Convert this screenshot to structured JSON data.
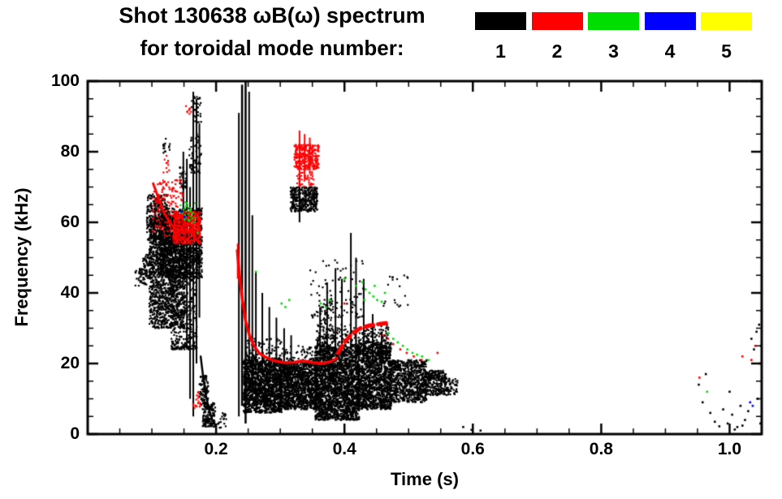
{
  "title": {
    "line1": "Shot 130638 ωB(ω) spectrum",
    "line2": "for toroidal mode number:"
  },
  "legend": {
    "entries": [
      {
        "label": "1",
        "color": "#000000"
      },
      {
        "label": "2",
        "color": "#ff0000"
      },
      {
        "label": "3",
        "color": "#00dd00"
      },
      {
        "label": "4",
        "color": "#0000ff"
      },
      {
        "label": "5",
        "color": "#ffff00"
      }
    ]
  },
  "axes": {
    "x": {
      "label": "Time (s)",
      "min": 0,
      "max": 1.05,
      "ticks": [
        0.2,
        0.4,
        0.6,
        0.8,
        1.0
      ],
      "tick_labels": [
        "0.2",
        "0.4",
        "0.6",
        "0.8",
        "1.0"
      ],
      "minor_step": 0.05
    },
    "y": {
      "label": "Frequency (kHz)",
      "min": 0,
      "max": 100,
      "ticks": [
        0,
        20,
        40,
        60,
        80,
        100
      ],
      "tick_labels": [
        "0",
        "20",
        "40",
        "60",
        "80",
        "100"
      ],
      "minor_step": 5
    }
  },
  "chart_data": {
    "type": "scatter",
    "title": "Shot 130638 ωB(ω) spectrum for toroidal mode number",
    "xlabel": "Time (s)",
    "ylabel": "Frequency (kHz)",
    "xlim": [
      0,
      1.05
    ],
    "ylim": [
      0,
      100
    ],
    "grid": false,
    "legend_position": "top-right",
    "series": [
      {
        "name": "1",
        "color": "#000000",
        "clusters": [
          [
            0.074,
            0.092,
            42,
            47,
            45,
            0
          ],
          [
            0.086,
            0.101,
            44,
            51,
            70,
            0
          ],
          [
            0.092,
            0.124,
            55,
            68,
            280,
            0
          ],
          [
            0.096,
            0.152,
            30,
            62,
            1600,
            0
          ],
          [
            0.113,
            0.178,
            44,
            64,
            1200,
            0
          ],
          [
            0.13,
            0.17,
            24,
            45,
            300,
            1
          ],
          [
            0.117,
            0.129,
            79,
            84,
            16,
            0
          ],
          [
            0.158,
            0.177,
            74,
            85,
            60,
            0
          ],
          [
            0.161,
            0.177,
            88,
            96,
            30,
            0
          ],
          [
            0.143,
            0.154,
            69,
            76,
            30,
            0
          ],
          [
            0.179,
            0.199,
            2,
            9,
            140,
            0
          ],
          [
            0.174,
            0.188,
            8,
            17,
            80,
            0
          ],
          [
            0.202,
            0.216,
            1.5,
            6,
            20,
            0
          ],
          [
            0.243,
            0.302,
            6,
            21,
            1500,
            0
          ],
          [
            0.245,
            0.302,
            21,
            27,
            100,
            1
          ],
          [
            0.3,
            0.358,
            7,
            20,
            1200,
            0
          ],
          [
            0.302,
            0.356,
            20,
            25,
            80,
            1
          ],
          [
            0.354,
            0.423,
            4,
            25,
            2200,
            0
          ],
          [
            0.356,
            0.42,
            25,
            31,
            120,
            1
          ],
          [
            0.42,
            0.473,
            7,
            26,
            1400,
            0
          ],
          [
            0.422,
            0.47,
            26,
            31,
            90,
            1
          ],
          [
            0.47,
            0.528,
            9,
            21,
            800,
            0
          ],
          [
            0.525,
            0.558,
            11,
            18,
            260,
            0
          ],
          [
            0.556,
            0.577,
            11,
            16,
            60,
            0
          ],
          [
            0.316,
            0.358,
            63,
            70,
            340,
            0
          ],
          [
            0.345,
            0.43,
            33,
            50,
            100,
            1
          ],
          [
            0.36,
            0.383,
            27,
            38,
            60,
            1
          ],
          [
            0.46,
            0.5,
            36,
            45,
            20,
            1
          ]
        ],
        "streaks": [
          [
            0.149,
            58,
            80,
            2
          ],
          [
            0.1545,
            24,
            78,
            2
          ],
          [
            0.1595,
            10,
            70,
            2
          ],
          [
            0.1645,
            5,
            97,
            2
          ],
          [
            0.1695,
            20,
            95,
            2
          ],
          [
            0.174,
            33,
            88,
            2
          ],
          [
            0.2355,
            5,
            91,
            2
          ],
          [
            0.2405,
            8,
            99,
            2.5
          ],
          [
            0.246,
            3,
            100,
            2.5
          ],
          [
            0.2515,
            20,
            97,
            2
          ],
          [
            0.2565,
            14,
            62,
            2
          ],
          [
            0.262,
            18,
            46,
            2
          ],
          [
            0.272,
            18,
            40,
            2
          ],
          [
            0.283,
            19,
            36,
            2
          ],
          [
            0.294,
            19,
            33,
            2
          ],
          [
            0.306,
            18,
            30,
            2
          ],
          [
            0.317,
            18,
            28,
            2
          ],
          [
            0.33,
            60,
            73,
            2
          ],
          [
            0.362,
            23,
            36,
            2
          ],
          [
            0.373,
            24,
            43,
            2
          ],
          [
            0.386,
            24,
            47,
            2
          ],
          [
            0.396,
            24,
            44,
            2
          ],
          [
            0.41,
            24,
            57,
            2
          ],
          [
            0.418,
            23,
            50,
            2
          ],
          [
            0.43,
            21,
            44,
            2
          ],
          [
            0.444,
            20,
            34,
            2
          ],
          [
            0.458,
            18,
            29,
            2
          ]
        ],
        "traces": [
          {
            "w": 2.5,
            "pts": [
              [
                0.176,
                22
              ],
              [
                0.18,
                16
              ],
              [
                0.184,
                11
              ],
              [
                0.189,
                7
              ],
              [
                0.194,
                4
              ],
              [
                0.199,
                2.5
              ]
            ]
          }
        ],
        "points": [
          [
            0.585,
            2
          ],
          [
            0.598,
            1.2
          ],
          [
            0.612,
            1
          ],
          [
            0.952,
            14
          ],
          [
            0.958,
            9
          ],
          [
            0.963,
            17
          ],
          [
            0.97,
            6
          ],
          [
            0.977,
            3.5
          ],
          [
            0.984,
            2.2
          ],
          [
            0.99,
            7
          ],
          [
            0.997,
            3
          ],
          [
            1.0,
            12
          ],
          [
            1.004,
            5.5
          ],
          [
            1.008,
            1.3
          ],
          [
            1.012,
            2
          ],
          [
            1.017,
            8
          ],
          [
            1.02,
            2.4
          ],
          [
            1.024,
            4
          ],
          [
            1.029,
            6.5
          ],
          [
            1.034,
            27
          ],
          [
            1.038,
            24
          ],
          [
            1.042,
            29
          ],
          [
            1.046,
            31
          ],
          [
            1.049,
            25
          ],
          [
            1.044,
            10
          ],
          [
            1.048,
            3
          ]
        ]
      },
      {
        "name": "2",
        "color": "#ff0000",
        "clusters": [
          [
            0.1,
            0.148,
            56,
            72,
            150,
            0
          ],
          [
            0.133,
            0.176,
            54,
            63,
            450,
            0
          ],
          [
            0.15,
            0.161,
            88,
            93,
            8,
            0
          ],
          [
            0.118,
            0.128,
            74,
            79,
            10,
            0
          ],
          [
            0.322,
            0.36,
            75,
            82,
            280,
            0
          ],
          [
            0.326,
            0.352,
            70,
            75,
            40,
            0
          ],
          [
            0.164,
            0.176,
            7,
            12,
            18,
            0
          ]
        ],
        "streaks": [
          [
            0.234,
            44,
            54,
            2.5
          ],
          [
            0.33,
            70,
            86,
            2
          ],
          [
            0.338,
            72,
            85,
            2
          ],
          [
            0.346,
            74,
            84,
            2
          ]
        ],
        "traces": [
          {
            "w": 3,
            "pts": [
              [
                0.102,
                71
              ],
              [
                0.108,
                68
              ],
              [
                0.114,
                65
              ],
              [
                0.121,
                62
              ],
              [
                0.128,
                60
              ],
              [
                0.135,
                58.5
              ],
              [
                0.142,
                57.5
              ]
            ]
          },
          {
            "w": 3.5,
            "pts": [
              [
                0.233,
                52
              ],
              [
                0.237,
                44
              ],
              [
                0.241,
                38
              ],
              [
                0.246,
                32
              ],
              [
                0.252,
                28
              ],
              [
                0.259,
                25
              ],
              [
                0.267,
                23
              ],
              [
                0.277,
                21.8
              ],
              [
                0.29,
                20.8
              ],
              [
                0.305,
                20.3
              ],
              [
                0.32,
                20.3
              ],
              [
                0.335,
                20.8
              ],
              [
                0.35,
                20.3
              ],
              [
                0.365,
                20.0
              ],
              [
                0.378,
                20.5
              ],
              [
                0.388,
                21.5
              ]
            ]
          },
          {
            "w": 5,
            "dash": [
              10,
              6
            ],
            "pts": [
              [
                0.39,
                23
              ],
              [
                0.4,
                26
              ],
              [
                0.412,
                28.5
              ],
              [
                0.425,
                30
              ],
              [
                0.44,
                30.8
              ],
              [
                0.455,
                31.2
              ],
              [
                0.468,
                31.5
              ]
            ]
          }
        ],
        "points": [
          [
            0.46,
            28
          ],
          [
            0.468,
            27
          ],
          [
            0.476,
            25.5
          ],
          [
            0.487,
            24
          ],
          [
            0.497,
            23
          ],
          [
            0.508,
            22
          ],
          [
            0.52,
            21
          ],
          [
            0.545,
            23
          ],
          [
            0.4,
            37
          ],
          [
            0.953,
            16
          ],
          [
            1.02,
            22
          ],
          [
            1.034,
            21
          ],
          [
            1.04,
            25
          ],
          [
            1.047,
            20
          ]
        ]
      },
      {
        "name": "3",
        "color": "#00dd00",
        "clusters": [
          [
            0.144,
            0.168,
            60,
            66,
            28,
            0
          ]
        ],
        "streaks": [],
        "traces": [],
        "points": [
          [
            0.171,
            57
          ],
          [
            0.262,
            46
          ],
          [
            0.302,
            37
          ],
          [
            0.308,
            36
          ],
          [
            0.314,
            38
          ],
          [
            0.363,
            37
          ],
          [
            0.371,
            36
          ],
          [
            0.377,
            38
          ],
          [
            0.4,
            44
          ],
          [
            0.418,
            42
          ],
          [
            0.428,
            43
          ],
          [
            0.431,
            38
          ],
          [
            0.433,
            41
          ],
          [
            0.439,
            40
          ],
          [
            0.445,
            39
          ],
          [
            0.447,
            42
          ],
          [
            0.451,
            38
          ],
          [
            0.458,
            37.5
          ],
          [
            0.463,
            40
          ],
          [
            0.468,
            28.5
          ],
          [
            0.476,
            27
          ],
          [
            0.483,
            26
          ],
          [
            0.491,
            25
          ],
          [
            0.498,
            24
          ],
          [
            0.506,
            23
          ],
          [
            0.513,
            22.5
          ],
          [
            0.521,
            22
          ],
          [
            0.531,
            21
          ],
          [
            0.965,
            12
          ]
        ]
      },
      {
        "name": "4",
        "color": "#0000ff",
        "clusters": [],
        "streaks": [],
        "traces": [],
        "points": [
          [
            0.146,
            63
          ],
          [
            0.151,
            61.5
          ],
          [
            1.032,
            9
          ],
          [
            1.036,
            8
          ]
        ]
      },
      {
        "name": "5",
        "color": "#ffff00",
        "clusters": [],
        "streaks": [],
        "traces": [],
        "points": []
      }
    ]
  }
}
